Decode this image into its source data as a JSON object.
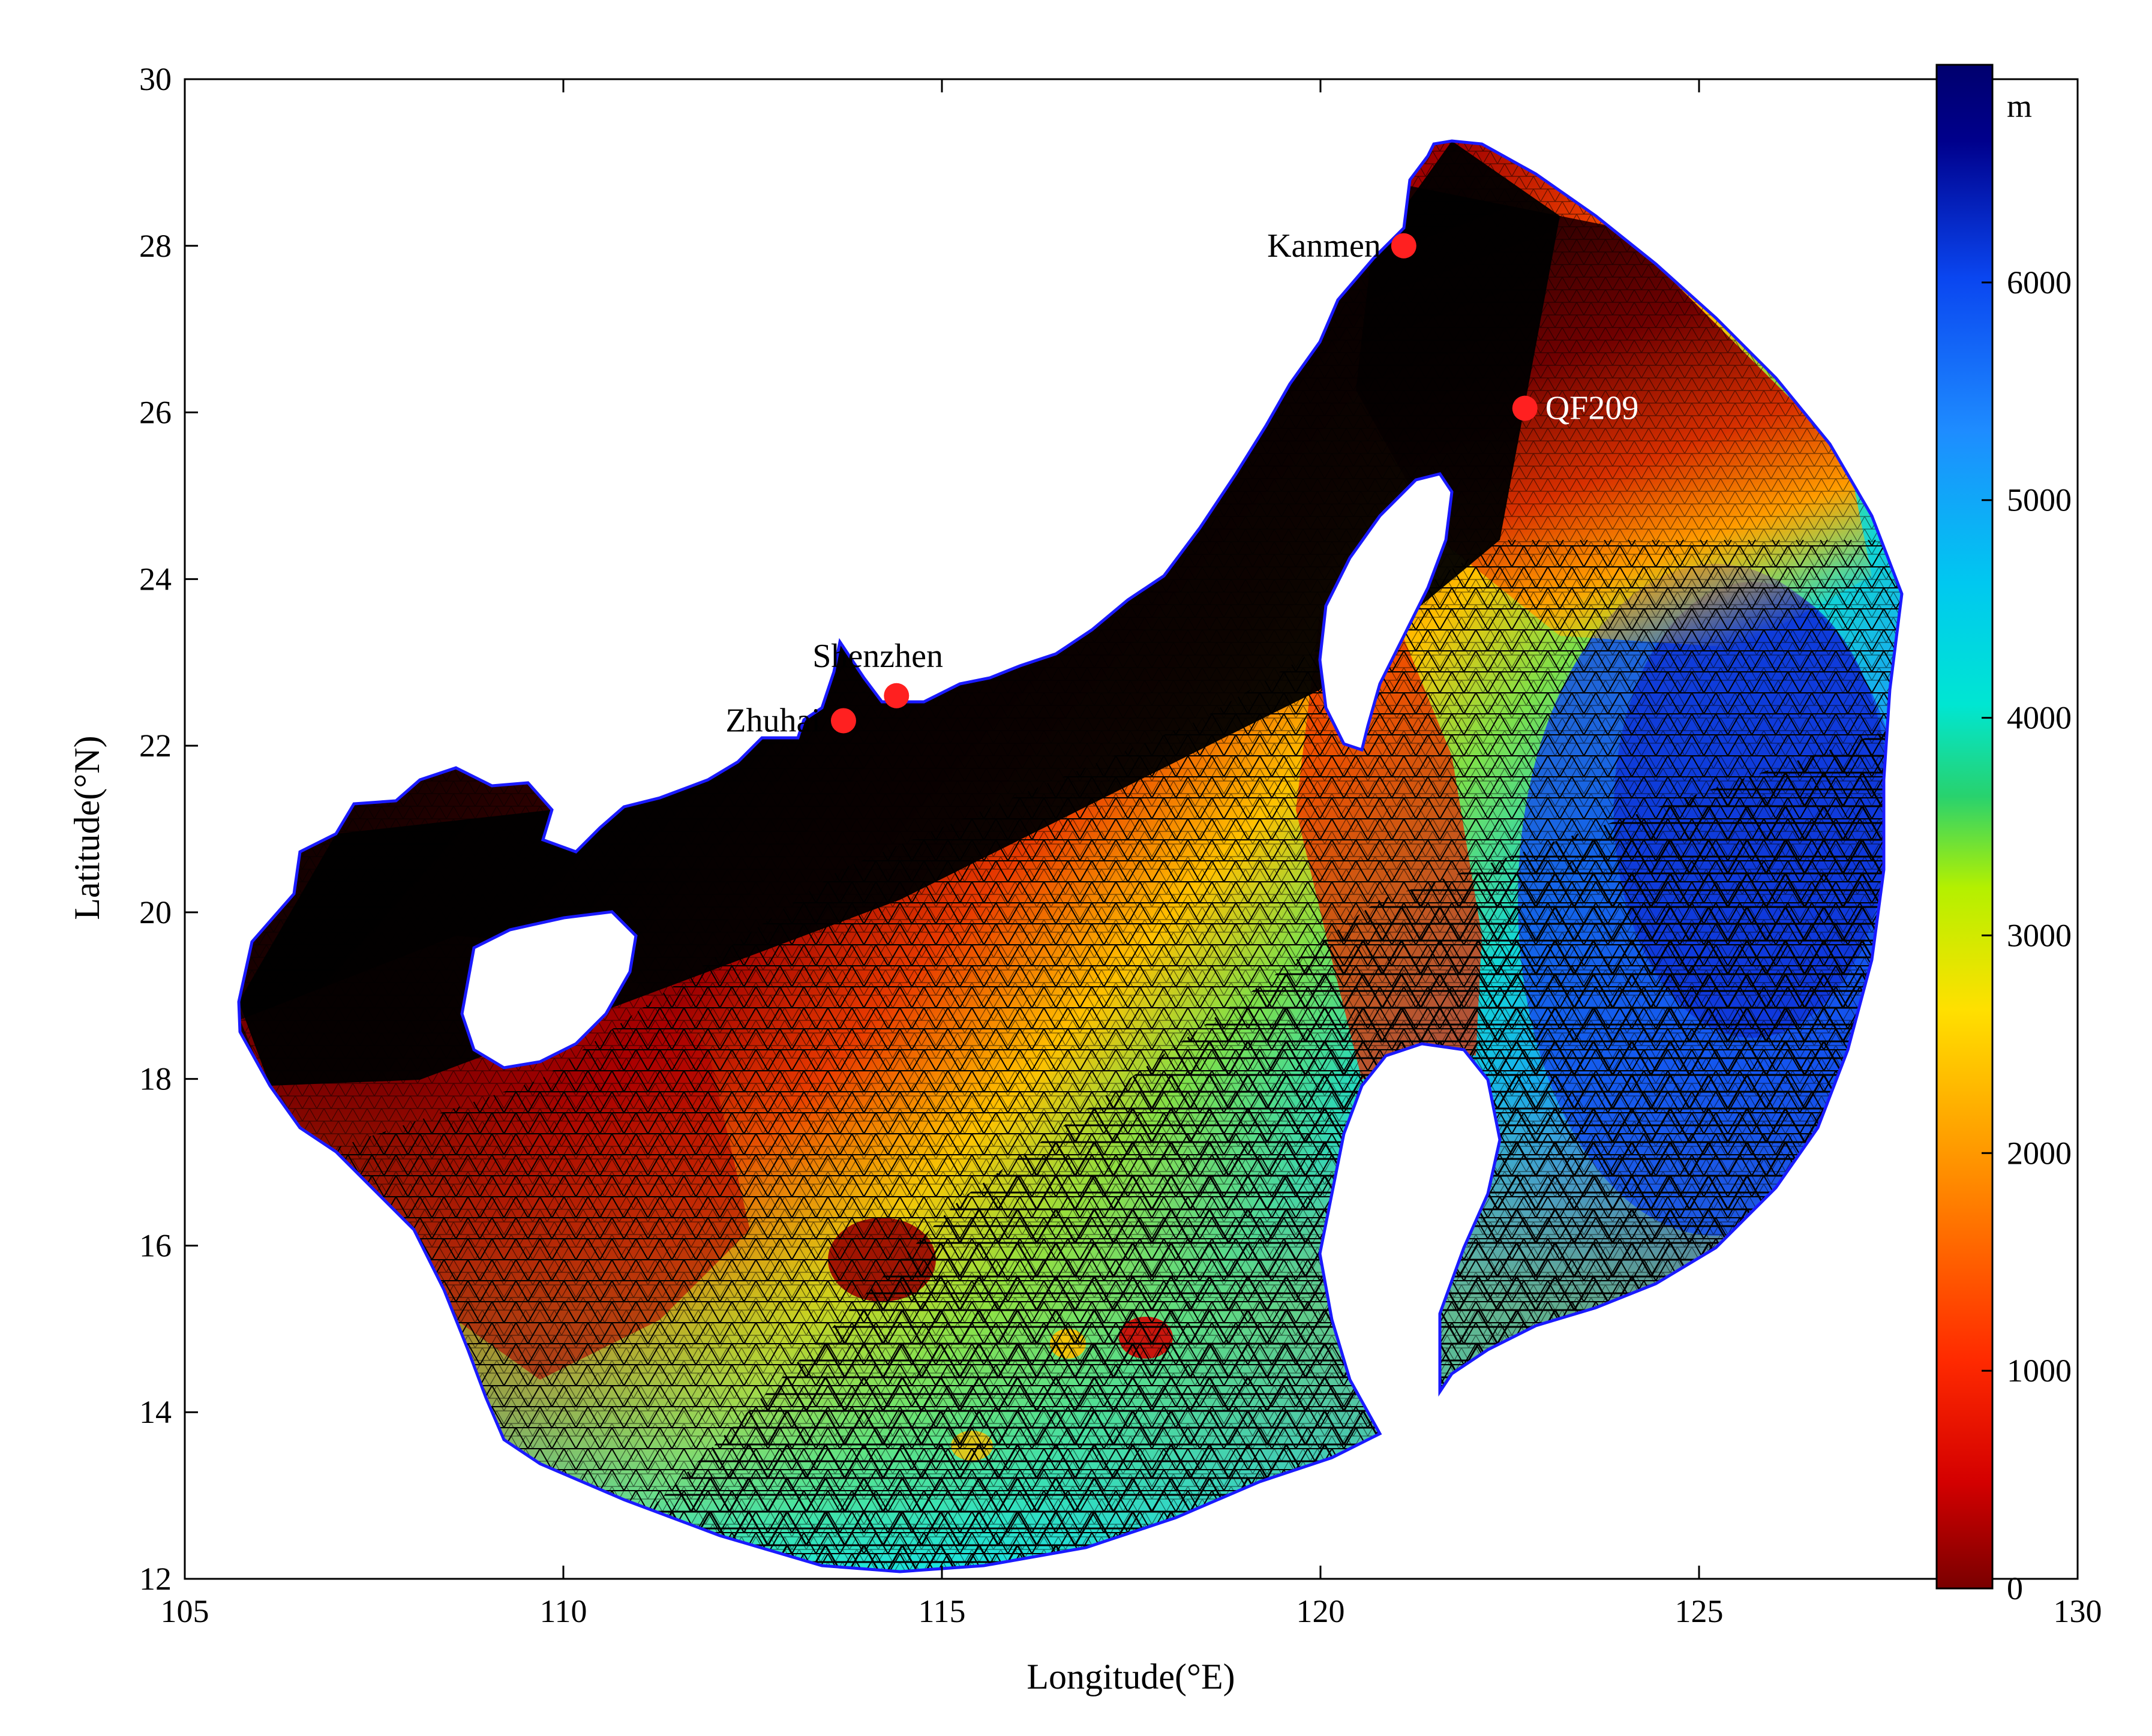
{
  "map": {
    "x_axis": {
      "label": "Longitude(°E)",
      "range": [
        105,
        130
      ],
      "ticks": [
        "105",
        "110",
        "115",
        "120",
        "125",
        "130"
      ]
    },
    "y_axis": {
      "label": "Latitude(°N)",
      "range": [
        12,
        30
      ],
      "ticks": [
        "12",
        "14",
        "16",
        "18",
        "20",
        "22",
        "24",
        "26",
        "28",
        "30"
      ]
    },
    "colorbar": {
      "unit": "m",
      "range": [
        0,
        7000
      ],
      "ticks": [
        "0",
        "1000",
        "2000",
        "3000",
        "4000",
        "5000",
        "6000"
      ],
      "colormap": "jet-reversed (dark red = 0 m, dark blue = deep)"
    },
    "stations": [
      {
        "name": "Kanmen",
        "lon": 121.1,
        "lat": 28.0,
        "label_side": "left"
      },
      {
        "name": "QF209",
        "lon": 122.7,
        "lat": 26.05,
        "label_side": "right"
      },
      {
        "name": "Shenzhen",
        "lon": 114.4,
        "lat": 22.6,
        "label_side": "above"
      },
      {
        "name": "Zhuhai",
        "lon": 113.7,
        "lat": 22.3,
        "label_side": "left"
      }
    ],
    "colors": {
      "station_marker": "#ff2020",
      "coastline": "#1a1aff",
      "mesh_lines": "#000000"
    },
    "grid": false
  }
}
